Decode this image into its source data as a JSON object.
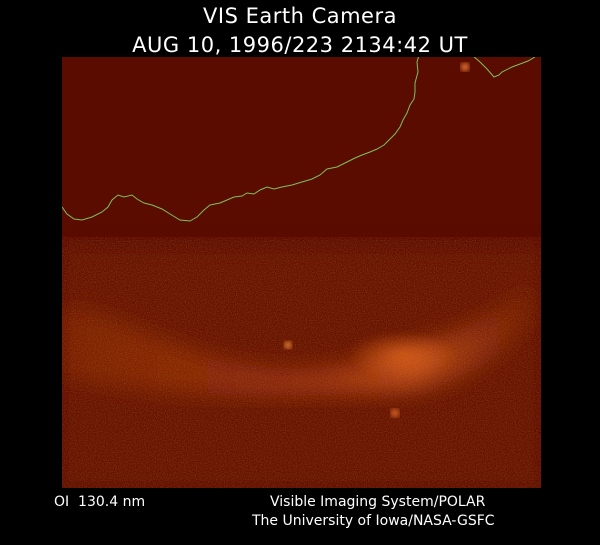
{
  "title_line1": "VIS Earth Camera",
  "title_line2": "AUG 10, 1996/223 2134:42 UT",
  "filter_label": "OI  130.4 nm",
  "credit_line1": "Visible Imaging System/POLAR",
  "credit_line2": "The University of Iowa/NASA-GSFC",
  "colors": {
    "background": "#000000",
    "image_base": "#5a0c00",
    "aurora": "#e0621a",
    "coastline": "#7fbf5a",
    "text": "#ffffff"
  }
}
